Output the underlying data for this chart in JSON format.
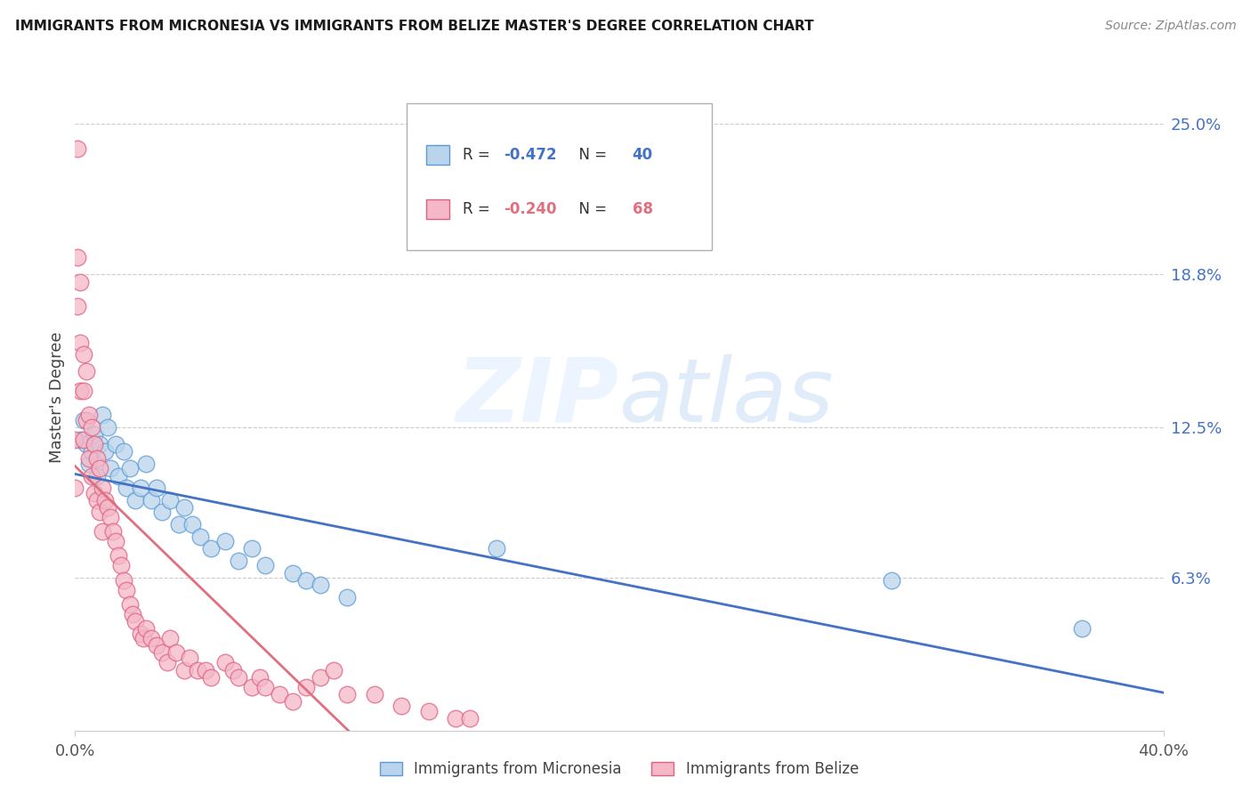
{
  "title": "IMMIGRANTS FROM MICRONESIA VS IMMIGRANTS FROM BELIZE MASTER'S DEGREE CORRELATION CHART",
  "source": "Source: ZipAtlas.com",
  "ylabel": "Master's Degree",
  "xlim": [
    0.0,
    0.4
  ],
  "ylim": [
    0.0,
    0.275
  ],
  "ytick_labels_right": [
    "25.0%",
    "18.8%",
    "12.5%",
    "6.3%"
  ],
  "ytick_values_right": [
    0.25,
    0.188,
    0.125,
    0.063
  ],
  "legend_label1": "Immigrants from Micronesia",
  "legend_label2": "Immigrants from Belize",
  "r1_text": "-0.472",
  "n1_text": "40",
  "r2_text": "-0.240",
  "n2_text": "68",
  "color_blue_fill": "#bad4eb",
  "color_blue_edge": "#5b9bd5",
  "color_pink_fill": "#f4b8c8",
  "color_pink_edge": "#e06080",
  "color_blue_line": "#4472c4",
  "color_pink_line": "#e07080",
  "color_blue_text": "#4472c4",
  "color_pink_text": "#e07080",
  "watermark_zip": "ZIP",
  "watermark_atlas": "atlas",
  "micronesia_x": [
    0.002,
    0.003,
    0.004,
    0.005,
    0.006,
    0.007,
    0.008,
    0.009,
    0.01,
    0.011,
    0.012,
    0.013,
    0.015,
    0.016,
    0.018,
    0.019,
    0.02,
    0.022,
    0.024,
    0.026,
    0.028,
    0.03,
    0.032,
    0.035,
    0.038,
    0.04,
    0.043,
    0.046,
    0.05,
    0.055,
    0.06,
    0.065,
    0.07,
    0.08,
    0.085,
    0.09,
    0.1,
    0.155,
    0.3,
    0.37
  ],
  "micronesia_y": [
    0.12,
    0.128,
    0.118,
    0.11,
    0.115,
    0.122,
    0.105,
    0.118,
    0.13,
    0.115,
    0.125,
    0.108,
    0.118,
    0.105,
    0.115,
    0.1,
    0.108,
    0.095,
    0.1,
    0.11,
    0.095,
    0.1,
    0.09,
    0.095,
    0.085,
    0.092,
    0.085,
    0.08,
    0.075,
    0.078,
    0.07,
    0.075,
    0.068,
    0.065,
    0.062,
    0.06,
    0.055,
    0.075,
    0.062,
    0.042
  ],
  "belize_x": [
    0.0,
    0.0,
    0.001,
    0.001,
    0.001,
    0.002,
    0.002,
    0.002,
    0.003,
    0.003,
    0.003,
    0.004,
    0.004,
    0.005,
    0.005,
    0.006,
    0.006,
    0.007,
    0.007,
    0.008,
    0.008,
    0.009,
    0.009,
    0.01,
    0.01,
    0.011,
    0.012,
    0.013,
    0.014,
    0.015,
    0.016,
    0.017,
    0.018,
    0.019,
    0.02,
    0.021,
    0.022,
    0.024,
    0.025,
    0.026,
    0.028,
    0.03,
    0.032,
    0.034,
    0.035,
    0.037,
    0.04,
    0.042,
    0.045,
    0.048,
    0.05,
    0.055,
    0.058,
    0.06,
    0.065,
    0.068,
    0.07,
    0.075,
    0.08,
    0.085,
    0.09,
    0.095,
    0.1,
    0.11,
    0.12,
    0.13,
    0.14,
    0.145
  ],
  "belize_y": [
    0.12,
    0.1,
    0.24,
    0.195,
    0.175,
    0.185,
    0.16,
    0.14,
    0.155,
    0.14,
    0.12,
    0.148,
    0.128,
    0.13,
    0.112,
    0.125,
    0.105,
    0.118,
    0.098,
    0.112,
    0.095,
    0.108,
    0.09,
    0.1,
    0.082,
    0.095,
    0.092,
    0.088,
    0.082,
    0.078,
    0.072,
    0.068,
    0.062,
    0.058,
    0.052,
    0.048,
    0.045,
    0.04,
    0.038,
    0.042,
    0.038,
    0.035,
    0.032,
    0.028,
    0.038,
    0.032,
    0.025,
    0.03,
    0.025,
    0.025,
    0.022,
    0.028,
    0.025,
    0.022,
    0.018,
    0.022,
    0.018,
    0.015,
    0.012,
    0.018,
    0.022,
    0.025,
    0.015,
    0.015,
    0.01,
    0.008,
    0.005,
    0.005
  ]
}
